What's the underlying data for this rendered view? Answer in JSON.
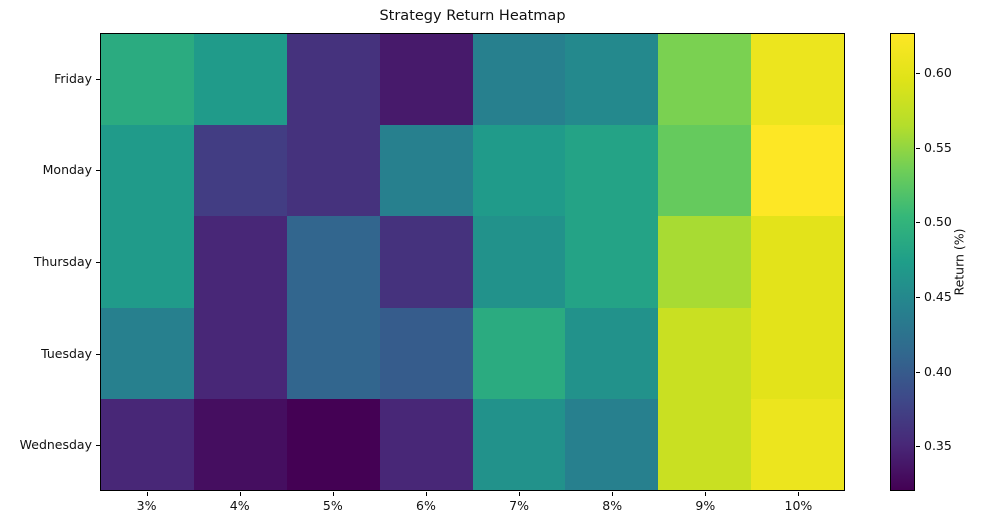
{
  "chart_data": {
    "type": "heatmap",
    "title": "Strategy Return Heatmap",
    "x_categories": [
      "3%",
      "4%",
      "5%",
      "6%",
      "7%",
      "8%",
      "9%",
      "10%"
    ],
    "y_categories": [
      "Friday",
      "Monday",
      "Thursday",
      "Tuesday",
      "Wednesday"
    ],
    "values": [
      [
        0.49,
        0.47,
        0.36,
        0.34,
        0.44,
        0.45,
        0.54,
        0.61
      ],
      [
        0.47,
        0.37,
        0.36,
        0.44,
        0.47,
        0.48,
        0.53,
        0.63
      ],
      [
        0.47,
        0.35,
        0.41,
        0.36,
        0.46,
        0.48,
        0.56,
        0.6
      ],
      [
        0.44,
        0.35,
        0.41,
        0.4,
        0.49,
        0.46,
        0.58,
        0.6
      ],
      [
        0.35,
        0.33,
        0.32,
        0.35,
        0.46,
        0.44,
        0.58,
        0.61
      ]
    ],
    "colormap": "viridis",
    "clim": [
      0.32,
      0.627
    ],
    "colorbar": {
      "label": "Return (%)",
      "ticks": [
        0.35,
        0.4,
        0.45,
        0.5,
        0.55,
        0.6
      ],
      "tick_labels": [
        "0.35",
        "0.40",
        "0.45",
        "0.50",
        "0.55",
        "0.60"
      ]
    },
    "layout": {
      "grid": false,
      "legend": "colorbar-right"
    }
  },
  "colors": {
    "background": "#ffffff",
    "text": "#000000",
    "axes_border": "#000000",
    "viridis_anchors": [
      "#440154",
      "#482878",
      "#3e4989",
      "#31688e",
      "#26828e",
      "#1f9e89",
      "#35b779",
      "#6ece58",
      "#b5de2b",
      "#dfe318",
      "#fde725"
    ]
  }
}
